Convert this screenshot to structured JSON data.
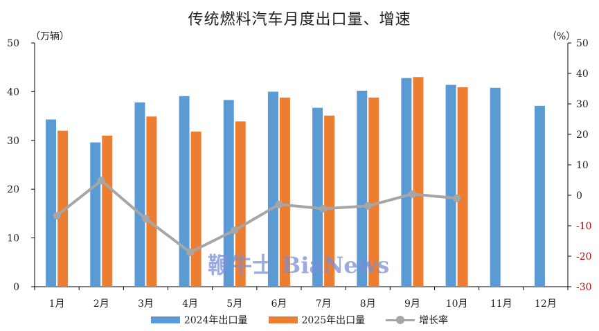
{
  "chart_data": {
    "type": "bar",
    "title": "传统燃料汽车月度出口量、增速",
    "y_left_unit": "（万辆）",
    "y_right_unit": "（%）",
    "categories": [
      "1月",
      "2月",
      "3月",
      "4月",
      "5月",
      "6月",
      "7月",
      "8月",
      "9月",
      "10月",
      "11月",
      "12月"
    ],
    "ylim_left": [
      0,
      50
    ],
    "yticks_left": [
      0,
      10,
      20,
      30,
      40,
      50
    ],
    "ylim_right": [
      -30,
      50
    ],
    "yticks_right": [
      -30,
      -20,
      -10,
      0,
      10,
      20,
      30,
      40,
      50
    ],
    "series": [
      {
        "name": "2024年出口量",
        "type": "bar",
        "axis": "left",
        "color": "#5b9bd5",
        "values": [
          34.3,
          29.6,
          37.8,
          39.1,
          38.3,
          40.0,
          36.7,
          40.2,
          42.8,
          41.4,
          40.8,
          37.1
        ]
      },
      {
        "name": "2025年出口量",
        "type": "bar",
        "axis": "left",
        "color": "#ed7d31",
        "values": [
          32.0,
          31.0,
          34.9,
          31.8,
          33.9,
          38.8,
          35.1,
          38.8,
          43.0,
          40.9,
          null,
          null
        ]
      },
      {
        "name": "增长率",
        "type": "line",
        "axis": "right",
        "color": "#a6a6a6",
        "values": [
          -6.7,
          4.8,
          -7.7,
          -18.7,
          -11.5,
          -3.0,
          -4.4,
          -3.5,
          0.4,
          -1.0,
          null,
          null
        ]
      }
    ],
    "negative_tick_color": "#c00000",
    "grid": false,
    "legend_position": "bottom"
  },
  "watermark": "鞭牛士 BiaNews"
}
